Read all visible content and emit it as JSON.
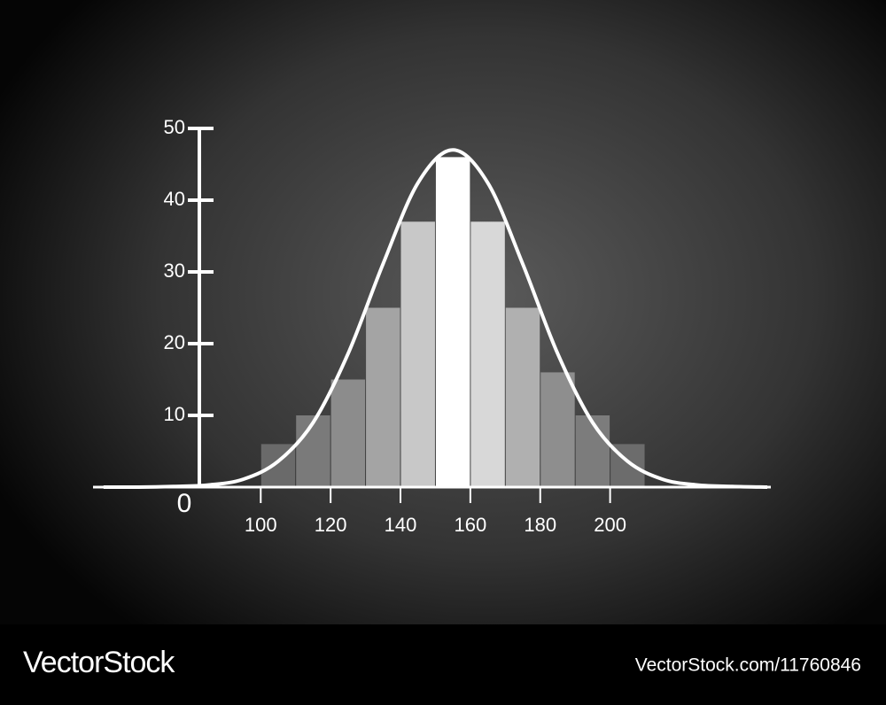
{
  "chart_data": {
    "type": "histogram",
    "bins": [
      100,
      110,
      120,
      130,
      140,
      150,
      160,
      170,
      180,
      190,
      200,
      210
    ],
    "values": [
      6,
      10,
      15,
      25,
      37,
      46,
      37,
      25,
      16,
      10,
      6
    ],
    "colors": [
      "#6a6a6a",
      "#7a7a7a",
      "#8c8c8c",
      "#a4a4a4",
      "#c8c8c8",
      "#ffffff",
      "#d8d8d8",
      "#b0b0b0",
      "#8e8e8e",
      "#7c7c7c",
      "#6c6c6c"
    ],
    "curve": {
      "color": "#ffffff",
      "x": [
        55,
        65,
        75,
        85,
        95,
        105,
        115,
        125,
        135,
        145,
        155,
        165,
        175,
        185,
        195,
        205,
        215,
        225,
        235,
        245
      ],
      "values": [
        0,
        0,
        0.1,
        0.3,
        1.1,
        3.6,
        9,
        18.6,
        31.1,
        42.4,
        47,
        42.4,
        31.1,
        18.6,
        9,
        3.6,
        1.1,
        0.3,
        0.1,
        0
      ]
    },
    "xlim": [
      52,
      246
    ],
    "ylim": [
      0,
      50
    ],
    "xticks": [
      100,
      120,
      140,
      160,
      180,
      200
    ],
    "yticks": [
      0,
      10,
      20,
      30,
      40,
      50
    ],
    "grid": false
  },
  "watermark": {
    "brand": "VectorStock",
    "url": "VectorStock.com/11760846"
  }
}
